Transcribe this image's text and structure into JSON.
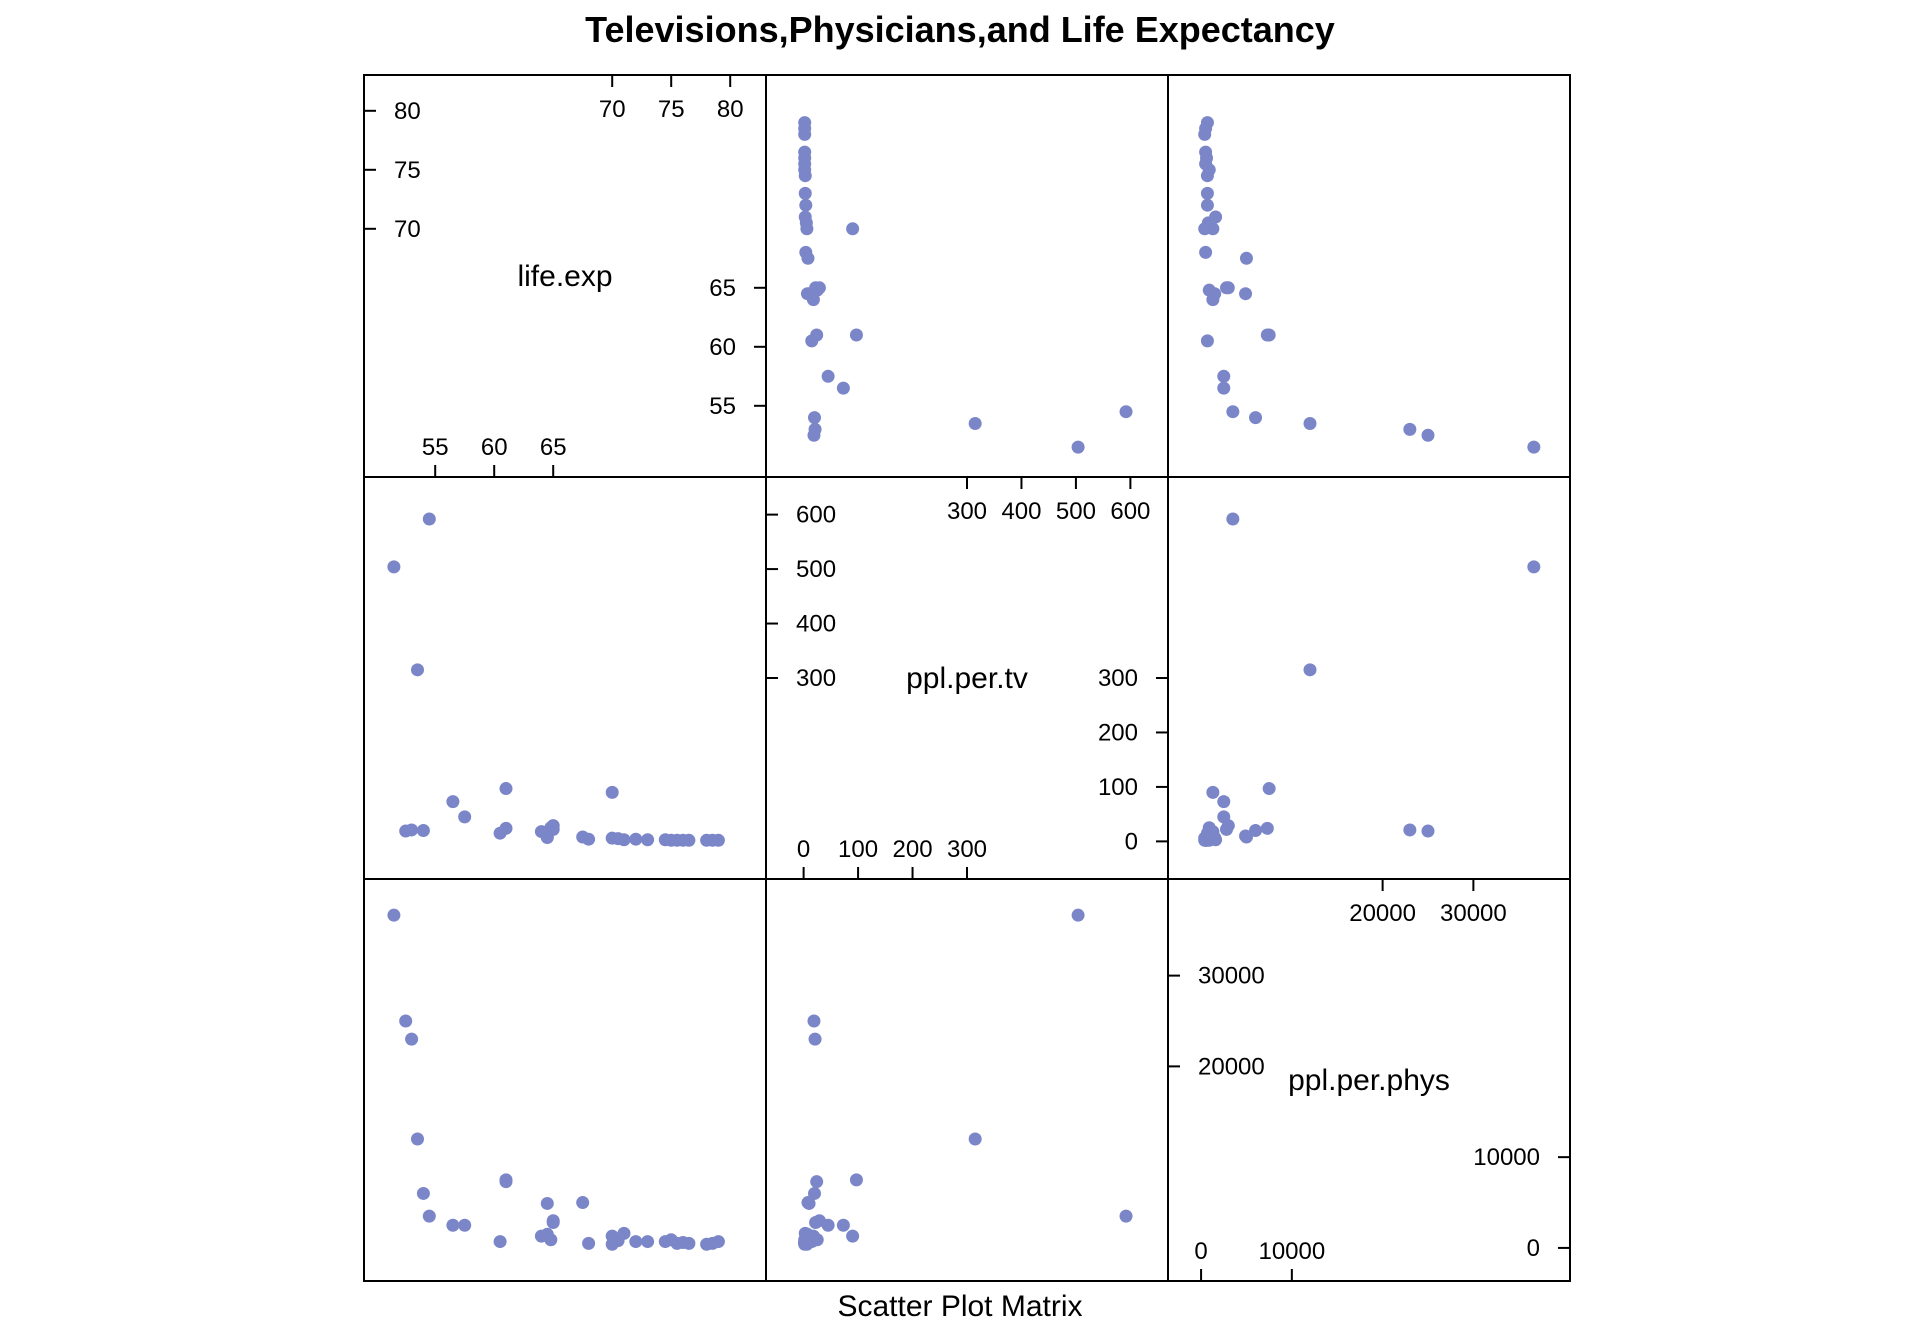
{
  "chart_data": {
    "type": "scatter",
    "title": "Televisions,Physicians,and Life Expectancy",
    "xlabel": "Scatter Plot Matrix",
    "point_color": "#7b86c8",
    "frame_color": "#000000",
    "variables": [
      {
        "name": "life.exp",
        "range": [
          51.0,
          81.0
        ],
        "ticks": [
          55,
          60,
          65,
          70,
          75,
          80
        ]
      },
      {
        "name": "ppl.per.tv",
        "range": [
          -25,
          625
        ],
        "ticks": [
          0,
          100,
          200,
          300,
          400,
          500,
          600
        ]
      },
      {
        "name": "ppl.per.phys",
        "range": [
          -1000,
          38000
        ],
        "ticks": [
          0,
          10000,
          20000,
          30000
        ]
      }
    ],
    "diagonal_axes": [
      {
        "var": 0,
        "bottom_ticks": [
          55,
          60,
          65
        ],
        "top_ticks": [
          70,
          75,
          80
        ],
        "left_ticks": [
          70,
          75,
          80
        ],
        "right_ticks": [
          55,
          60,
          65
        ]
      },
      {
        "var": 1,
        "bottom_ticks": [
          0,
          100,
          200,
          300
        ],
        "top_ticks": [
          300,
          400,
          500,
          600
        ],
        "left_ticks": [
          300,
          400,
          500,
          600
        ],
        "right_ticks": [
          0,
          100,
          200,
          300
        ]
      },
      {
        "var": 2,
        "bottom_ticks": [
          0,
          10000
        ],
        "top_ticks": [
          20000,
          30000
        ],
        "left_ticks": [
          20000,
          30000
        ],
        "right_ticks": [
          0,
          10000
        ]
      }
    ],
    "points": [
      {
        "life.exp": 51.5,
        "ppl.per.tv": 504,
        "ppl.per.phys": 36660
      },
      {
        "life.exp": 52.5,
        "ppl.per.tv": 19,
        "ppl.per.phys": 25000
      },
      {
        "life.exp": 53.5,
        "ppl.per.tv": 315,
        "ppl.per.phys": 12000
      },
      {
        "life.exp": 53.0,
        "ppl.per.tv": 21,
        "ppl.per.phys": 23000
      },
      {
        "life.exp": 54.5,
        "ppl.per.tv": 592,
        "ppl.per.phys": 3500
      },
      {
        "life.exp": 54.0,
        "ppl.per.tv": 20,
        "ppl.per.phys": 6000
      },
      {
        "life.exp": 56.5,
        "ppl.per.tv": 73,
        "ppl.per.phys": 2500
      },
      {
        "life.exp": 57.5,
        "ppl.per.tv": 45,
        "ppl.per.phys": 2500
      },
      {
        "life.exp": 60.5,
        "ppl.per.tv": 15,
        "ppl.per.phys": 700
      },
      {
        "life.exp": 61.0,
        "ppl.per.tv": 97,
        "ppl.per.phys": 7500
      },
      {
        "life.exp": 61.0,
        "ppl.per.tv": 24,
        "ppl.per.phys": 7300
      },
      {
        "life.exp": 64.5,
        "ppl.per.tv": 7,
        "ppl.per.phys": 1500
      },
      {
        "life.exp": 64.0,
        "ppl.per.tv": 18,
        "ppl.per.phys": 1300
      },
      {
        "life.exp": 65.0,
        "ppl.per.tv": 22,
        "ppl.per.phys": 2800
      },
      {
        "life.exp": 64.5,
        "ppl.per.tv": 10,
        "ppl.per.phys": 4900
      },
      {
        "life.exp": 65.0,
        "ppl.per.tv": 29,
        "ppl.per.phys": 3000
      },
      {
        "life.exp": 64.8,
        "ppl.per.tv": 25,
        "ppl.per.phys": 900
      },
      {
        "life.exp": 67.5,
        "ppl.per.tv": 8,
        "ppl.per.phys": 5000
      },
      {
        "life.exp": 68.0,
        "ppl.per.tv": 4,
        "ppl.per.phys": 500
      },
      {
        "life.exp": 70.0,
        "ppl.per.tv": 90,
        "ppl.per.phys": 1300
      },
      {
        "life.exp": 70.0,
        "ppl.per.tv": 6,
        "ppl.per.phys": 400
      },
      {
        "life.exp": 70.5,
        "ppl.per.tv": 5,
        "ppl.per.phys": 800
      },
      {
        "life.exp": 71.0,
        "ppl.per.tv": 3,
        "ppl.per.phys": 1600
      },
      {
        "life.exp": 72.0,
        "ppl.per.tv": 4,
        "ppl.per.phys": 700
      },
      {
        "life.exp": 73.0,
        "ppl.per.tv": 3,
        "ppl.per.phys": 700
      },
      {
        "life.exp": 74.5,
        "ppl.per.tv": 3,
        "ppl.per.phys": 700
      },
      {
        "life.exp": 75.0,
        "ppl.per.tv": 2,
        "ppl.per.phys": 900
      },
      {
        "life.exp": 75.5,
        "ppl.per.tv": 2,
        "ppl.per.phys": 500
      },
      {
        "life.exp": 76.0,
        "ppl.per.tv": 2,
        "ppl.per.phys": 600
      },
      {
        "life.exp": 76.5,
        "ppl.per.tv": 2,
        "ppl.per.phys": 500
      },
      {
        "life.exp": 78.0,
        "ppl.per.tv": 2,
        "ppl.per.phys": 400
      },
      {
        "life.exp": 78.5,
        "ppl.per.tv": 2,
        "ppl.per.phys": 500
      },
      {
        "life.exp": 79.0,
        "ppl.per.tv": 2,
        "ppl.per.phys": 700
      }
    ]
  }
}
